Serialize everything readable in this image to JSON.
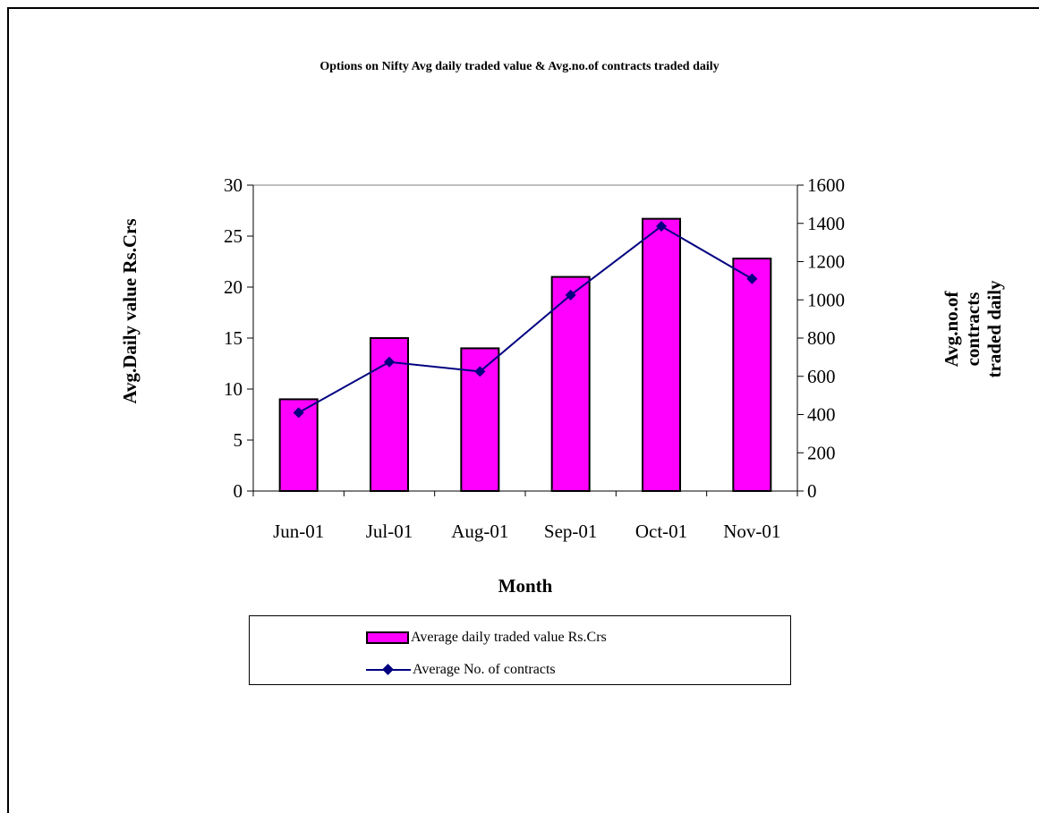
{
  "chart_data": {
    "type": "bar+line",
    "title": "Options on Nifty Avg daily traded value & Avg.no.of contracts traded daily",
    "xlabel": "Month",
    "ylabel_left": "Avg.Daily value Rs.Crs",
    "ylabel_right": [
      "Avg.no.of",
      "contracts",
      "traded daily"
    ],
    "categories": [
      "Jun-01",
      "Jul-01",
      "Aug-01",
      "Sep-01",
      "Oct-01",
      "Nov-01"
    ],
    "ylim_left": [
      0,
      30
    ],
    "yticks_left": [
      0,
      5,
      10,
      15,
      20,
      25,
      30
    ],
    "ylim_right": [
      0,
      1600
    ],
    "yticks_right": [
      0,
      200,
      400,
      600,
      800,
      1000,
      1200,
      1400,
      1600
    ],
    "series": [
      {
        "name": "Average daily traded value Rs.Crs",
        "type": "bar",
        "axis": "left",
        "values": [
          9,
          15,
          14,
          21,
          26.7,
          22.8
        ],
        "color": "#FF00FF"
      },
      {
        "name": "Average No. of contracts",
        "type": "line",
        "axis": "right",
        "values": [
          410,
          675,
          625,
          1025,
          1385,
          1110
        ],
        "color": "#000080"
      }
    ],
    "grid": false,
    "legend_position": "bottom"
  }
}
